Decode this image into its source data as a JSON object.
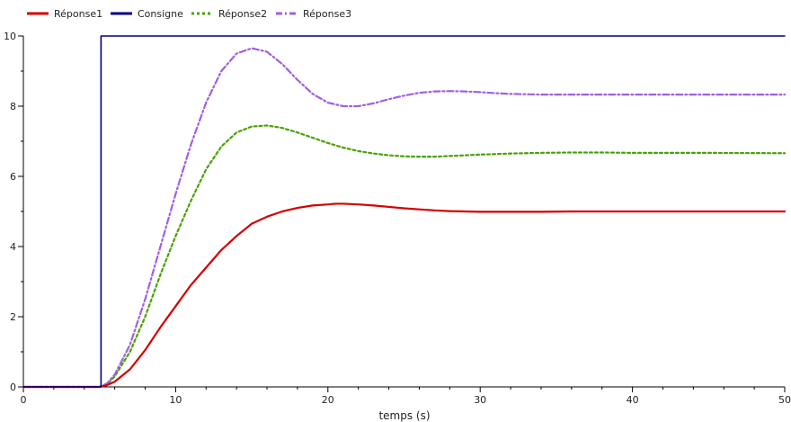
{
  "chart_data": {
    "type": "line",
    "title": "",
    "xlabel": "temps (s)",
    "ylabel": "",
    "xlim": [
      0,
      50
    ],
    "ylim": [
      0,
      10
    ],
    "xticks": [
      0,
      10,
      20,
      30,
      40,
      50
    ],
    "yticks": [
      0,
      2,
      4,
      6,
      8,
      10
    ],
    "grid": false,
    "legend_position": "top-left",
    "series": [
      {
        "name": "Réponse1",
        "color": "#d40000",
        "style": "solid",
        "x": [
          0,
          5,
          5.5,
          6,
          7,
          8,
          9,
          10,
          11,
          12,
          13,
          14,
          15,
          16,
          17,
          18,
          19,
          20,
          20.5,
          21,
          22,
          23,
          24,
          25,
          26,
          27,
          28,
          29,
          30,
          32,
          34,
          36,
          38,
          40,
          45,
          50
        ],
        "values": [
          0,
          0,
          0.05,
          0.15,
          0.5,
          1.05,
          1.7,
          2.3,
          2.9,
          3.4,
          3.9,
          4.3,
          4.65,
          4.85,
          5.0,
          5.1,
          5.17,
          5.2,
          5.22,
          5.22,
          5.2,
          5.17,
          5.13,
          5.09,
          5.06,
          5.03,
          5.01,
          5.0,
          4.99,
          4.99,
          4.99,
          5.0,
          5.0,
          5.0,
          5.0,
          5.0
        ]
      },
      {
        "name": "Consigne",
        "color": "#000080",
        "style": "solid",
        "x": [
          0,
          5.1,
          5.1,
          50
        ],
        "values": [
          0,
          0,
          10,
          10
        ]
      },
      {
        "name": "Réponse2",
        "color": "#4aa200",
        "style": "dotted",
        "x": [
          0,
          5,
          5.5,
          6,
          7,
          8,
          9,
          10,
          11,
          12,
          13,
          14,
          15,
          16,
          17,
          18,
          19,
          20,
          21,
          22,
          23,
          24,
          25,
          26,
          27,
          28,
          29,
          30,
          32,
          34,
          36,
          38,
          40,
          45,
          50
        ],
        "values": [
          0,
          0,
          0.08,
          0.3,
          1.0,
          2.0,
          3.2,
          4.3,
          5.3,
          6.2,
          6.85,
          7.25,
          7.42,
          7.45,
          7.38,
          7.25,
          7.1,
          6.95,
          6.82,
          6.72,
          6.65,
          6.6,
          6.57,
          6.56,
          6.56,
          6.58,
          6.6,
          6.62,
          6.65,
          6.67,
          6.68,
          6.68,
          6.67,
          6.67,
          6.66
        ]
      },
      {
        "name": "Réponse3",
        "color": "#a060e0",
        "style": "dash-dot",
        "x": [
          0,
          5,
          5.5,
          6,
          7,
          8,
          9,
          10,
          11,
          12,
          13,
          14,
          15,
          16,
          17,
          18,
          19,
          20,
          21,
          22,
          23,
          24,
          25,
          26,
          27,
          28,
          29,
          30,
          31,
          32,
          34,
          36,
          38,
          40,
          45,
          50
        ],
        "values": [
          0,
          0,
          0.1,
          0.35,
          1.2,
          2.5,
          4.0,
          5.5,
          6.9,
          8.1,
          9.0,
          9.5,
          9.65,
          9.55,
          9.2,
          8.75,
          8.35,
          8.1,
          8.0,
          8.0,
          8.08,
          8.2,
          8.3,
          8.38,
          8.42,
          8.43,
          8.42,
          8.4,
          8.37,
          8.35,
          8.33,
          8.33,
          8.33,
          8.33,
          8.33,
          8.33
        ]
      }
    ]
  }
}
